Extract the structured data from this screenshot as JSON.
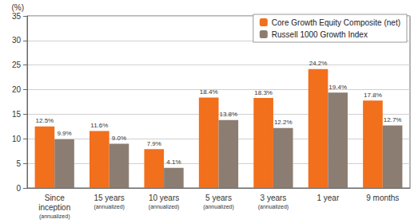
{
  "chart_data": {
    "type": "bar",
    "y_label": "(%)",
    "categories": [
      "Since\ninception\n(annualized)",
      "15 years\n(annualized)",
      "10 years\n(annualized)",
      "5 years\n(annualized)",
      "3 years\n(annualized)",
      "1 year",
      "9 months"
    ],
    "series": [
      {
        "name": "Core Growth Equity Composite (net)",
        "color": "#f26f1c",
        "values": [
          12.5,
          11.6,
          7.9,
          18.4,
          18.3,
          24.2,
          17.8
        ],
        "value_labels": [
          "12.5%",
          "11.6%",
          "7.9%",
          "18.4%",
          "18.3%",
          "24.2%",
          "17.8%"
        ]
      },
      {
        "name": "Russell 1000 Growth Index",
        "color": "#8c7d72",
        "values": [
          9.9,
          9.0,
          4.1,
          13.8,
          12.2,
          19.4,
          12.7
        ],
        "value_labels": [
          "9.9%",
          "9.0%",
          "4.1%",
          "13.8%",
          "12.2%",
          "19.4%",
          "12.7%"
        ]
      }
    ],
    "ylim": [
      0,
      35
    ],
    "yticks": [
      0,
      5,
      10,
      15,
      20,
      25,
      30,
      35
    ],
    "grid": true,
    "legend": "upper right",
    "data_labels": true
  }
}
